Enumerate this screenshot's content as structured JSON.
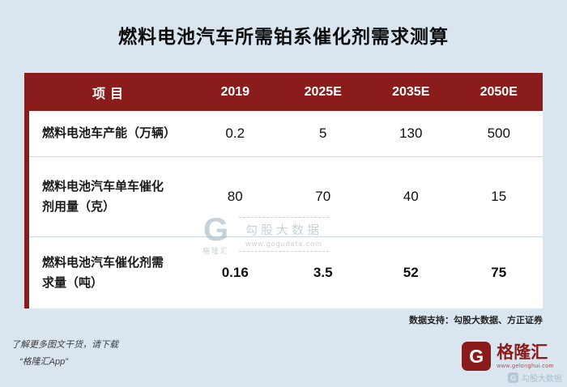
{
  "title": "燃料电池汽车所需铂系催化剂需求测算",
  "table": {
    "headers": [
      "项目",
      "2019",
      "2025E",
      "2035E",
      "2050E"
    ],
    "rows": [
      {
        "label": "燃料电池车产能（万辆）",
        "values": [
          "0.2",
          "5",
          "130",
          "500"
        ]
      },
      {
        "label": "燃料电池汽车单车催化剂用量（克）",
        "values": [
          "80",
          "70",
          "40",
          "15"
        ]
      },
      {
        "label": "燃料电池汽车催化剂需求量（吨）",
        "values": [
          "0.16",
          "3.5",
          "52",
          "75"
        ]
      }
    ]
  },
  "chart_data": {
    "type": "table",
    "title": "燃料电池汽车所需铂系催化剂需求测算",
    "columns": [
      "项目",
      "2019",
      "2025E",
      "2035E",
      "2050E"
    ],
    "rows": [
      [
        "燃料电池车产能（万辆）",
        0.2,
        5,
        130,
        500
      ],
      [
        "燃料电池汽车单车催化剂用量（克）",
        80,
        70,
        40,
        15
      ],
      [
        "燃料电池汽车催化剂需求量（吨）",
        0.16,
        3.5,
        52,
        75
      ]
    ]
  },
  "footnote": "数据支持：勾股大数据、方正证券",
  "promo": {
    "line1": "了解更多图文干货，请下载",
    "line2": "“格隆汇App”"
  },
  "logo": {
    "letter": "G",
    "name": "格隆汇",
    "url": "www.gelonghui.com"
  },
  "watermark": {
    "letter": "G",
    "brand": "格隆汇",
    "line1": "勾股大数据",
    "line2": "www.gogudata.com"
  },
  "corner": {
    "letter": "G",
    "label": "勾股大数据"
  },
  "colors": {
    "background": "#d9e6ef",
    "header_bg": "#8a1c1c",
    "header_text": "#ffffff",
    "row_bg": "#ffffff",
    "accent": "#8a1c1c"
  }
}
